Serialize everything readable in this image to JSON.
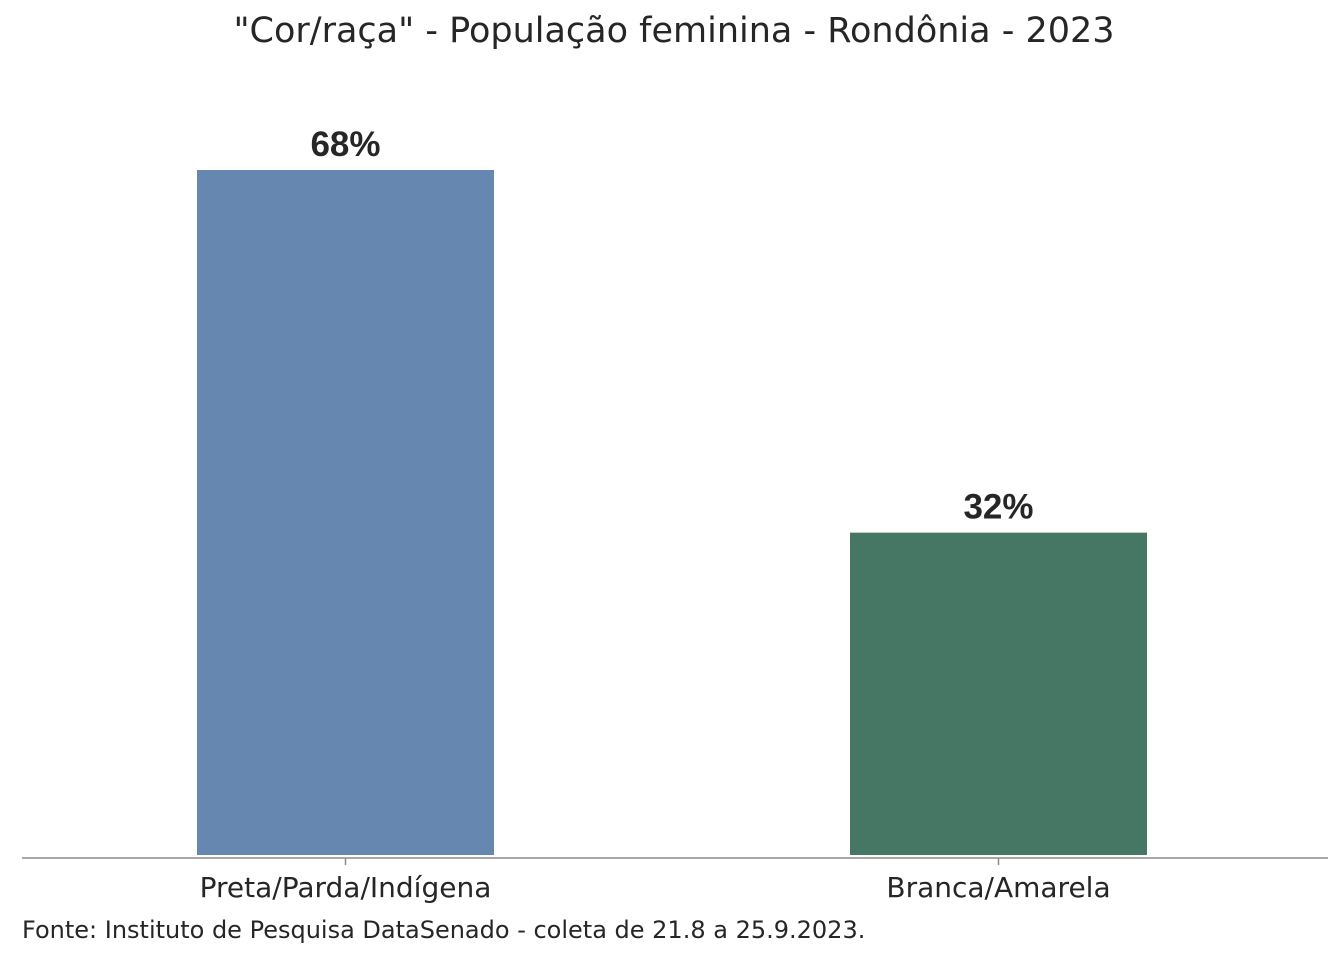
{
  "chart_data": {
    "type": "bar",
    "title": "\"Cor/raça\" - População feminina - Rondônia - 2023",
    "categories": [
      "Preta/Parda/Indígena",
      "Branca/Amarela"
    ],
    "values": [
      68,
      32
    ],
    "value_labels": [
      "68%",
      "32%"
    ],
    "unit": "%",
    "colors": [
      "#6688b0",
      "#467664"
    ],
    "ylim": [
      0,
      68
    ],
    "grid": false,
    "legend": "none",
    "xlabel": "",
    "ylabel": ""
  },
  "source": "Fonte: Instituto de Pesquisa DataSenado - coleta de 21.8 a 25.9.2023."
}
